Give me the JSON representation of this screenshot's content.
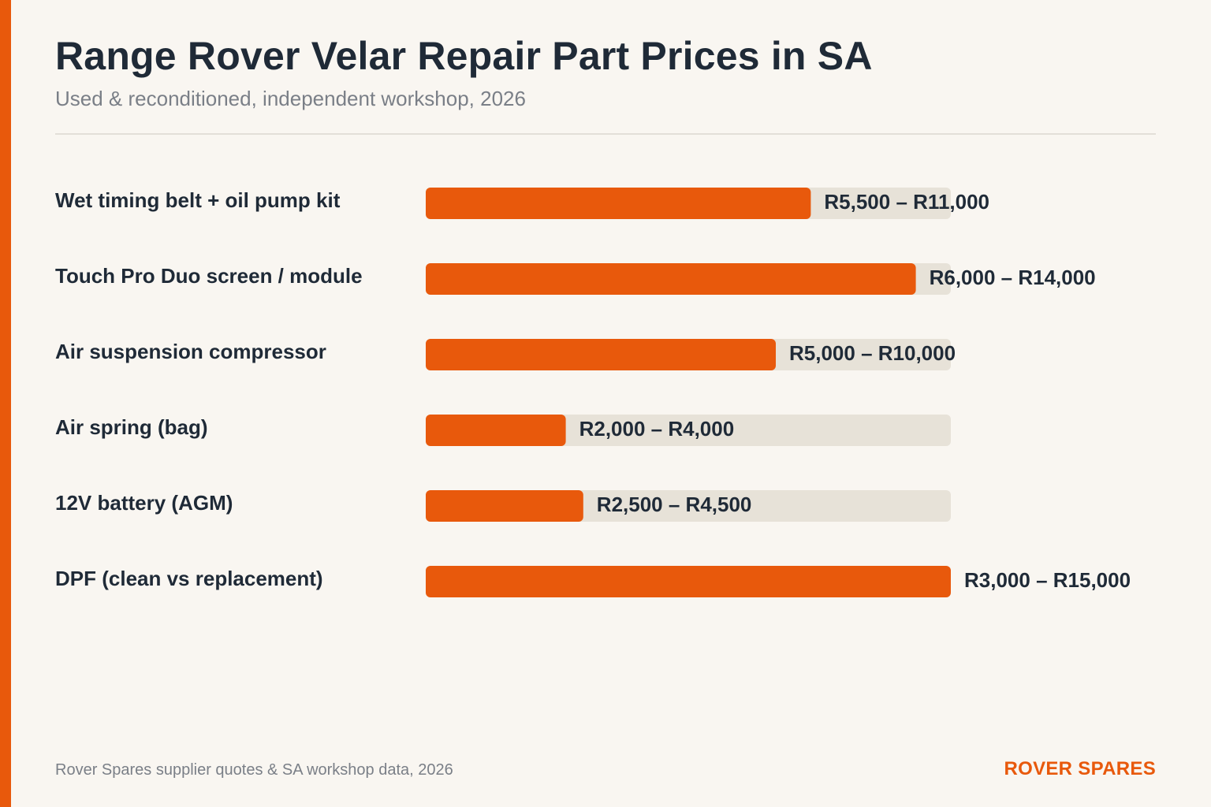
{
  "title": "Range Rover Velar Repair Part Prices in SA",
  "subtitle": "Used & reconditioned, independent workshop, 2026",
  "source": "Rover Spares supplier quotes & SA workshop data, 2026",
  "brand": "ROVER SPARES",
  "colors": {
    "accent": "#e8590c",
    "track": "#e7e2d8",
    "text": "#1f2a37",
    "muted": "#7a7f87",
    "background": "#f9f6f1"
  },
  "chart_data": {
    "type": "bar",
    "orientation": "horizontal",
    "xlim": [
      0,
      15000
    ],
    "grid": false,
    "categories": [
      "Wet timing belt + oil pump kit",
      "Touch Pro Duo screen / module",
      "Air suspension compressor",
      "Air spring (bag)",
      "12V battery (AGM)",
      "DPF (clean vs replacement)"
    ],
    "ranges": [
      {
        "min": 5500,
        "max": 11000,
        "label": "R5,500 – R11,000"
      },
      {
        "min": 6000,
        "max": 14000,
        "label": "R6,000 – R14,000"
      },
      {
        "min": 5000,
        "max": 10000,
        "label": "R5,000 – R10,000"
      },
      {
        "min": 2000,
        "max": 4000,
        "label": "R2,000 – R4,000"
      },
      {
        "min": 2500,
        "max": 4500,
        "label": "R2,500 – R4,500"
      },
      {
        "min": 3000,
        "max": 15000,
        "label": "R3,000 – R15,000"
      }
    ]
  }
}
